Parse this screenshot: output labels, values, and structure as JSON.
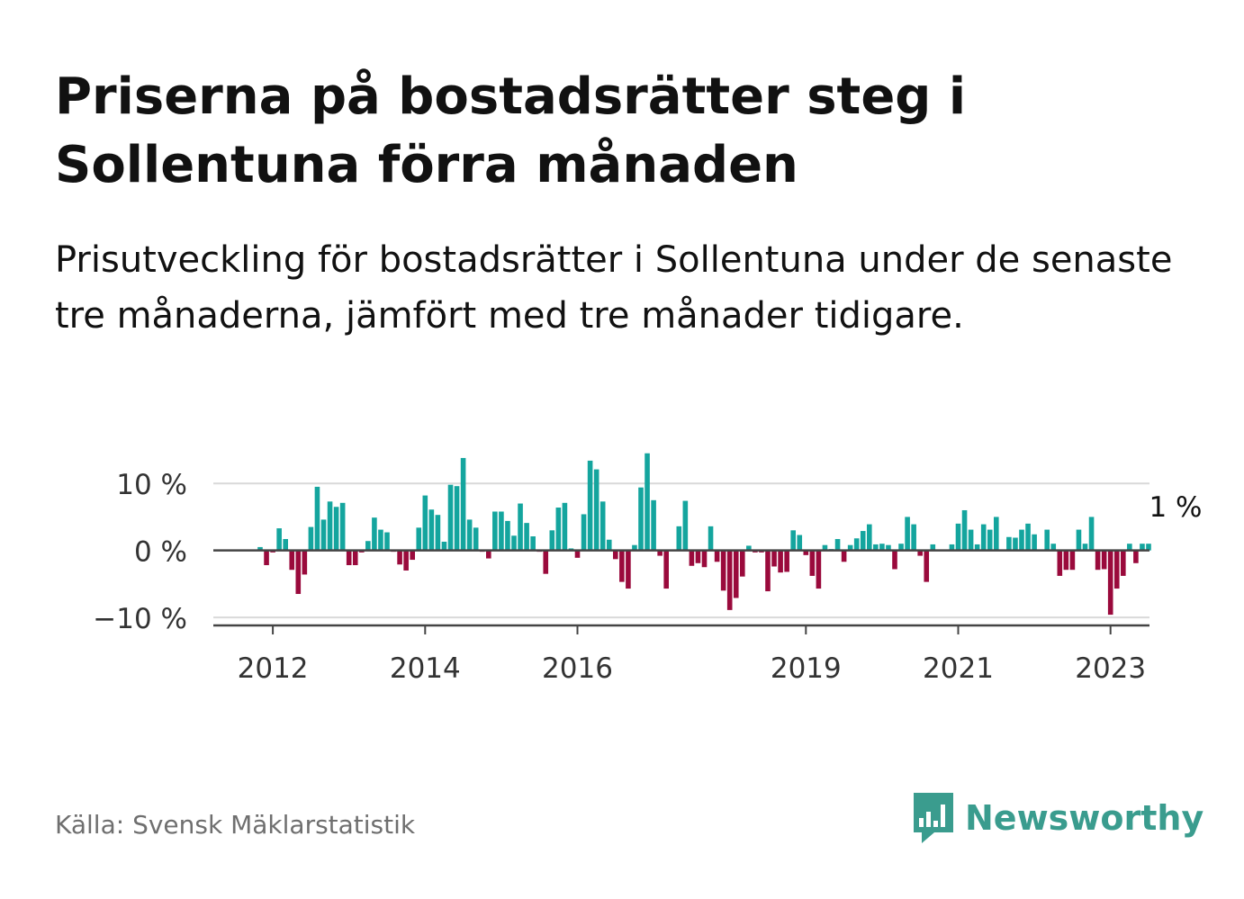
{
  "title": "Priserna på bostadsrätter steg i Sollentuna förra månaden",
  "subtitle": "Prisutveckling för bostadsrätter i Sollentuna under de senaste tre månaderna, jämfört med tre månader tidigare.",
  "source": "Källa: Svensk Mäklarstatistik",
  "brand": {
    "name": "Newsworthy",
    "icon": "newsworthy-logo-icon",
    "color": "#3a9c8e"
  },
  "chart_data": {
    "type": "bar",
    "x_unit": "month",
    "x_start": "2011-11",
    "x_end": "2023-01",
    "values": [
      0.5,
      -2.2,
      -0.3,
      3.3,
      1.7,
      -2.9,
      -6.5,
      -3.6,
      3.5,
      9.5,
      4.6,
      7.3,
      6.5,
      7.1,
      -2.2,
      -2.2,
      -0.3,
      1.4,
      4.9,
      3.1,
      2.7,
      -0.2,
      -2.1,
      -3.0,
      -1.4,
      3.4,
      8.2,
      6.1,
      5.3,
      1.3,
      9.8,
      9.6,
      13.8,
      4.6,
      3.4,
      -0.2,
      -1.2,
      5.8,
      5.8,
      4.4,
      2.2,
      7.0,
      4.1,
      2.1,
      -0.2,
      -3.5,
      3.0,
      6.4,
      7.1,
      0.3,
      -1.1,
      5.4,
      13.4,
      12.1,
      7.3,
      1.6,
      -1.3,
      -4.7,
      -5.7,
      0.8,
      9.4,
      14.5,
      7.5,
      -0.8,
      -5.7,
      0.1,
      3.6,
      7.4,
      -2.3,
      -1.9,
      -2.5,
      3.6,
      -1.7,
      -6.0,
      -8.9,
      -7.1,
      -3.9,
      0.7,
      -0.3,
      -0.3,
      -6.1,
      -2.4,
      -3.3,
      -3.2,
      3.0,
      2.3,
      -0.7,
      -3.8,
      -5.7,
      0.8,
      0.2,
      1.7,
      -1.7,
      0.8,
      1.8,
      2.9,
      3.9,
      0.9,
      1.0,
      0.8,
      -2.8,
      1.0,
      5.0,
      3.9,
      -0.8,
      -4.7,
      0.9,
      0.1,
      0.1,
      0.9,
      4.0,
      6.0,
      3.1,
      0.9,
      3.9,
      3.1,
      5.0,
      0.1,
      2.0,
      1.9,
      3.1,
      4.0,
      2.4,
      0.1,
      3.1,
      1.0,
      -3.8,
      -2.9,
      -2.9,
      3.1,
      1.0,
      5.0,
      -2.9,
      -2.8,
      -9.6,
      -5.7,
      -3.8,
      1.0,
      -1.9,
      1.0,
      1.0
    ],
    "highlight_label": "1 %",
    "y_ticks": [
      10,
      0,
      -10
    ],
    "y_tick_labels": [
      "10 %",
      "0 %",
      "−10 %"
    ],
    "ylim": [
      -11.2,
      15
    ],
    "x_ticks": [
      "2012",
      "2014",
      "2016",
      "2019",
      "2021",
      "2023"
    ],
    "grid": true,
    "positive_color": "#14a59e",
    "negative_color": "#9a0a3c"
  }
}
